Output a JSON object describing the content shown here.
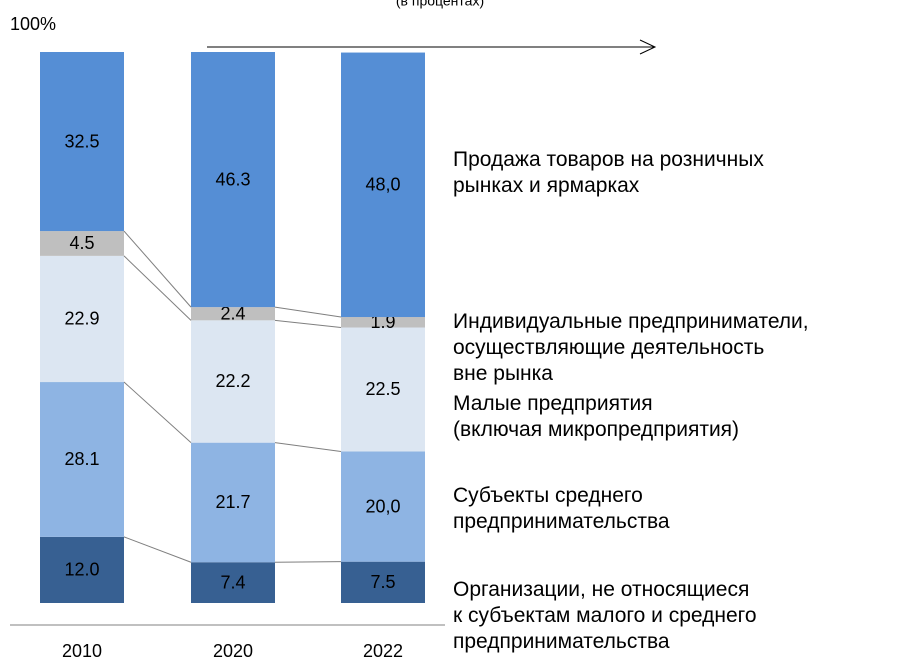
{
  "chart_data": {
    "type": "stacked_bar",
    "subtitle": "(в процентах)",
    "categories": [
      "2010",
      "2020",
      "2022"
    ],
    "ylim": [
      0,
      100
    ],
    "yticks": [
      {
        "value": 100,
        "label": "100%"
      }
    ],
    "legend": "right",
    "series": [
      {
        "name": "Продажа товаров на розничных\nрынках и ярмарках",
        "color": "#376092",
        "values": [
          12.0,
          7.4,
          7.5
        ],
        "value_labels": [
          "12.0",
          "7.4",
          "7.5"
        ]
      },
      {
        "name": "Индивидуальные предприниматели,\nосуществляющие деятельность\nвне рынка",
        "color": "#8eb4e3",
        "values": [
          28.1,
          21.7,
          20.0
        ],
        "value_labels": [
          "28.1",
          "21.7",
          "20,0"
        ]
      },
      {
        "name": "Малые предприятия\n(включая микропредприятия)",
        "color": "#dce6f2",
        "values": [
          22.9,
          22.2,
          22.5
        ],
        "value_labels": [
          "22.9",
          "22.2",
          "22.5"
        ]
      },
      {
        "name": "Субъекты среднего\nпредпринимательства",
        "color": "#bfbfbf",
        "values": [
          4.5,
          2.4,
          1.9
        ],
        "value_labels": [
          "4.5",
          "2.4",
          "1.9"
        ]
      },
      {
        "name": "Организации, не относящиеся\nк субъектам малого и среднего\nпредпринимательства",
        "color": "#558ed5",
        "values": [
          32.5,
          46.3,
          48.0
        ],
        "value_labels": [
          "32.5",
          "46.3",
          "48,0"
        ]
      }
    ]
  }
}
